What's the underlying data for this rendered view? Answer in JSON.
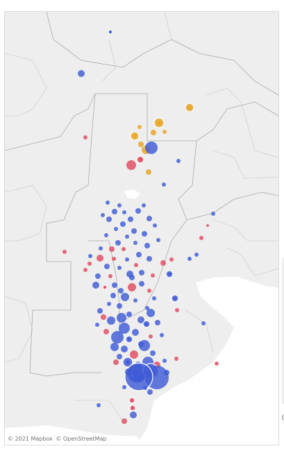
{
  "attribution": {
    "mapbox": "© 2021 Mapbox",
    "osm": "© OpenStreetMap"
  },
  "colors": {
    "land": "#eeeeee",
    "water": "#ffffff",
    "province_border": "#a9a9a9",
    "district_border": "#c6c6c6",
    "blue": "#3f5bd6",
    "red": "#e14a63",
    "orange": "#e7a52a"
  },
  "legend_categories": [
    "blue",
    "red",
    "orange"
  ]
}
